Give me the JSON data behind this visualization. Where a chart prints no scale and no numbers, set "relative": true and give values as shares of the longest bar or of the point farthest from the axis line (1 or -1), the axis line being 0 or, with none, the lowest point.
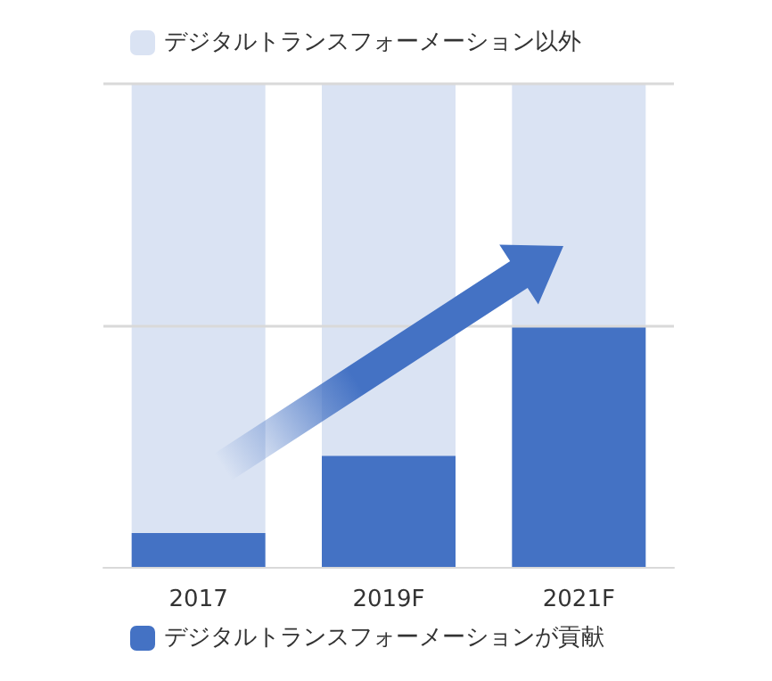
{
  "chart_data": {
    "type": "bar",
    "stacked": true,
    "relative": true,
    "categories": [
      "2017",
      "2019F",
      "2021F"
    ],
    "series": [
      {
        "name": "デジタルトランスフォーメーションが貢献",
        "color": "#4472c4",
        "values": [
          0.07,
          0.23,
          0.5
        ]
      },
      {
        "name": "デジタルトランスフォーメーション以外",
        "color": "#dae3f3",
        "values": [
          0.93,
          0.77,
          0.5
        ]
      }
    ],
    "ref_lines": [
      {
        "axis": "y",
        "value": 0.5,
        "color": "#d9d9d9"
      },
      {
        "axis": "y",
        "value": 1,
        "color": "#d9d9d9"
      }
    ],
    "legend": "bottom"
  }
}
